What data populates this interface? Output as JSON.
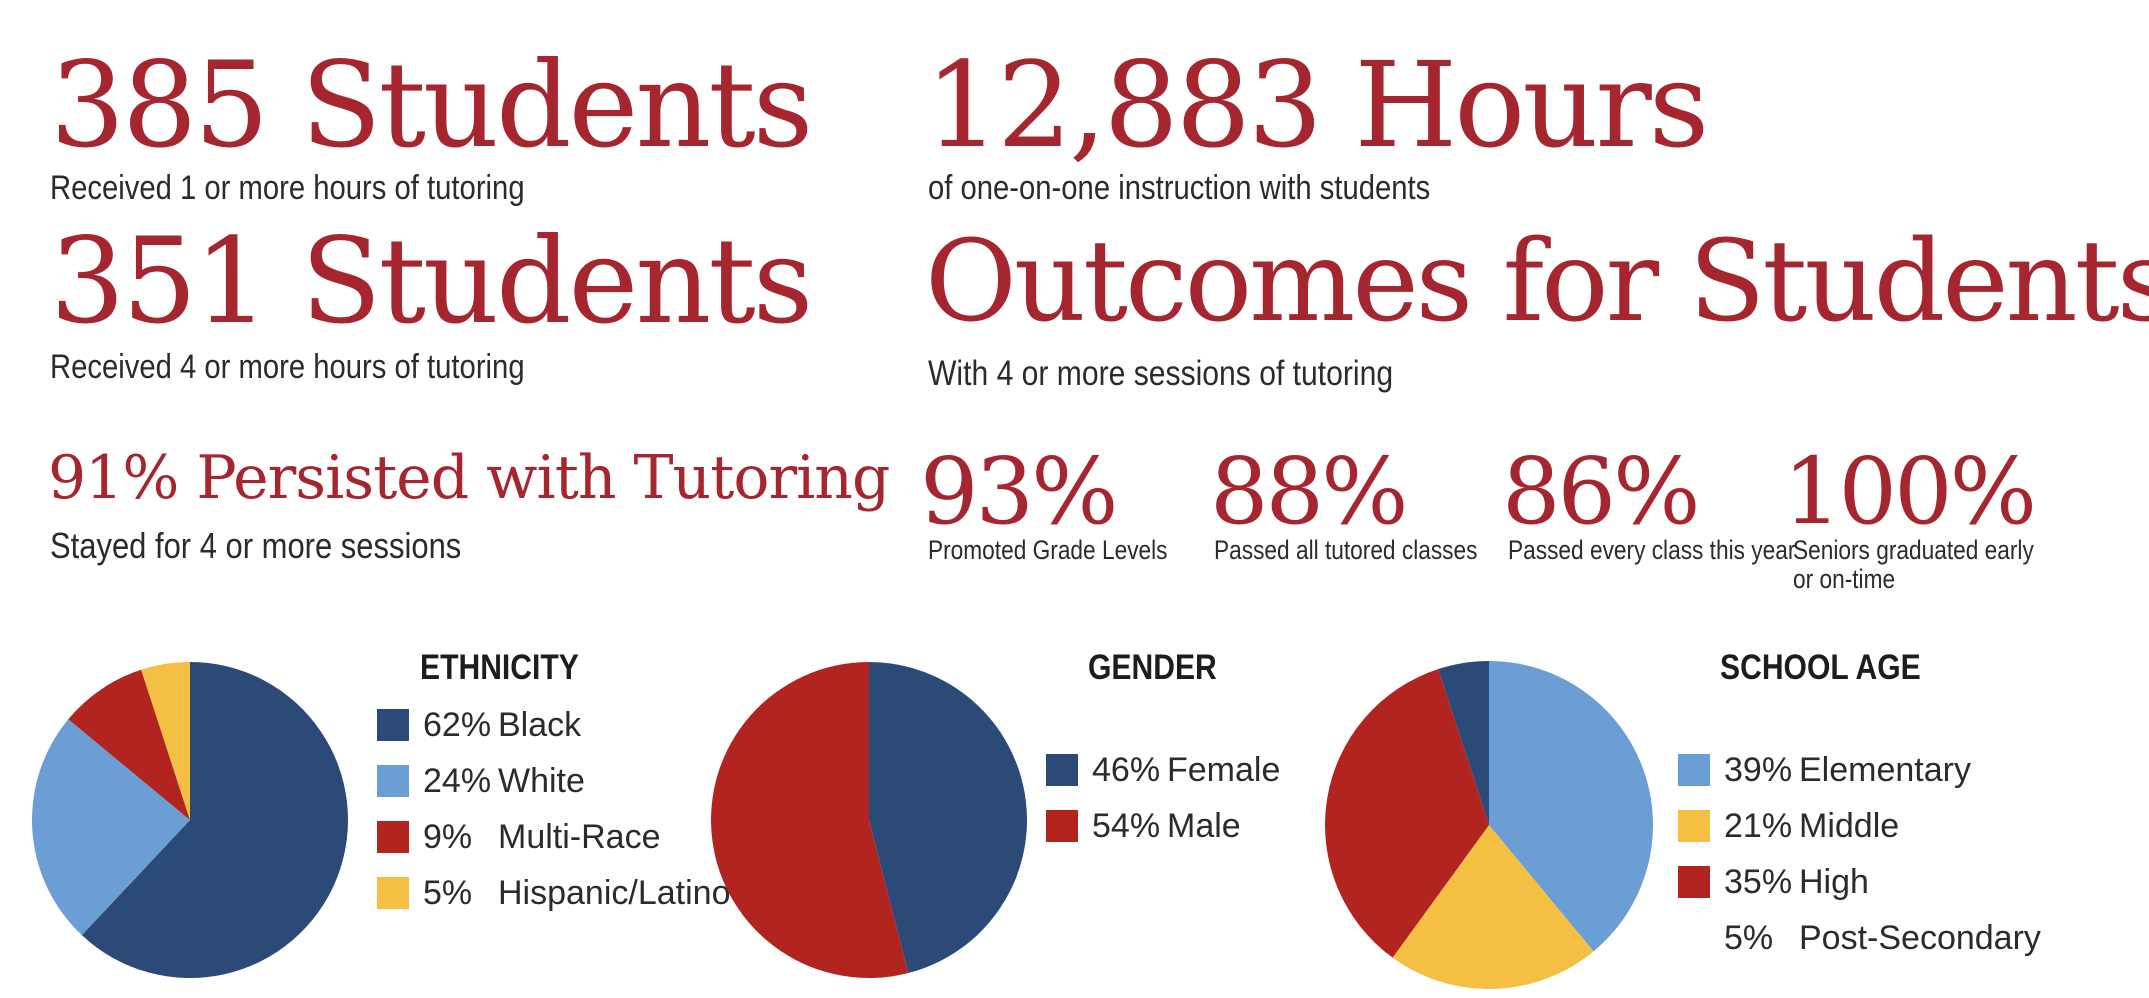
{
  "stats": {
    "students_1": {
      "headline": "385 Students",
      "desc": "Received 1 or more hours of tutoring"
    },
    "hours": {
      "headline": "12,883 Hours",
      "desc": "of one-on-one instruction with students"
    },
    "students_4": {
      "headline": "351 Students",
      "desc": "Received 4 or more hours of tutoring"
    },
    "outcomes": {
      "headline": "Outcomes for Students",
      "desc": "With 4 or more sessions of tutoring"
    },
    "persisted": {
      "headline": "91% Persisted with Tutoring",
      "desc": "Stayed for 4 or more sessions"
    },
    "metrics": [
      {
        "value": "93%",
        "label": "Promoted Grade Levels"
      },
      {
        "value": "88%",
        "label": "Passed all tutored classes"
      },
      {
        "value": "86%",
        "label": "Passed every class this year"
      },
      {
        "value": "100%",
        "label": "Seniors graduated early",
        "label2": "or on-time"
      }
    ]
  },
  "colors": {
    "accent": "#a62630",
    "dark_blue": "#2c4a78",
    "light_blue": "#6b9ed4",
    "red": "#b2241f",
    "yellow": "#f4bf42"
  },
  "chart_data": [
    {
      "type": "pie",
      "title": "ETHNICITY",
      "slices": [
        {
          "label": "Black",
          "pct_label": "62%",
          "value": 62,
          "color": "#2c4a78"
        },
        {
          "label": "White",
          "pct_label": "24%",
          "value": 24,
          "color": "#6b9ed4"
        },
        {
          "label": "Multi-Race",
          "pct_label": "9%",
          "value": 9,
          "color": "#b2241f"
        },
        {
          "label": "Hispanic/Latino",
          "pct_label": "5%",
          "value": 5,
          "color": "#f4bf42"
        }
      ]
    },
    {
      "type": "pie",
      "title": "GENDER",
      "slices": [
        {
          "label": "Female",
          "pct_label": "46%",
          "value": 46,
          "color": "#2c4a78"
        },
        {
          "label": "Male",
          "pct_label": "54%",
          "value": 54,
          "color": "#b2241f"
        }
      ]
    },
    {
      "type": "pie",
      "title": "SCHOOL AGE",
      "slices": [
        {
          "label": "Elementary",
          "pct_label": "39%",
          "value": 39,
          "color": "#6b9ed4"
        },
        {
          "label": "Middle",
          "pct_label": "21%",
          "value": 21,
          "color": "#f4bf42"
        },
        {
          "label": "High",
          "pct_label": "35%",
          "value": 35,
          "color": "#b2241f"
        },
        {
          "label": "Post-Secondary",
          "pct_label": "5%",
          "value": 5,
          "color": "#2c4a78",
          "legend_swatch": false
        }
      ]
    }
  ]
}
